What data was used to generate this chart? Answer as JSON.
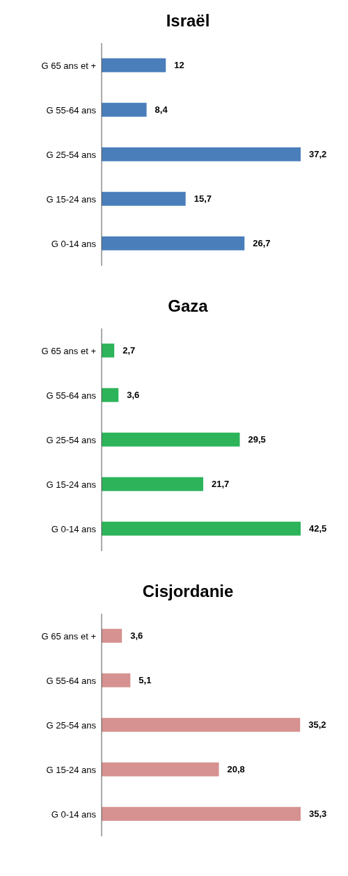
{
  "chart_data": [
    {
      "type": "bar",
      "orientation": "horizontal",
      "title": "Israël",
      "categories": [
        "G 65 ans et +",
        "G 55-64 ans",
        "G 25-54 ans",
        "G 15-24 ans",
        "G 0-14 ans"
      ],
      "values": [
        12,
        8.4,
        37.2,
        15.7,
        26.7
      ],
      "value_labels": [
        "12",
        "8,4",
        "37,2",
        "15,7",
        "26,7"
      ],
      "color": "#4a7ebb",
      "tick_labels": "y"
    },
    {
      "type": "bar",
      "orientation": "horizontal",
      "title": "Gaza",
      "categories": [
        "G 65 ans et +",
        "G 55-64 ans",
        "G 25-54 ans",
        "G 15-24 ans",
        "G 0-14 ans"
      ],
      "values": [
        2.7,
        3.6,
        29.5,
        21.7,
        42.5
      ],
      "value_labels": [
        "2,7",
        "3,6",
        "29,5",
        "21,7",
        "42,5"
      ],
      "color": "#2db45a",
      "tick_labels": "y"
    },
    {
      "type": "bar",
      "orientation": "horizontal",
      "title": "Cisjordanie",
      "categories": [
        "G 65 ans et +",
        "G 55-64 ans",
        "G 25-54 ans",
        "G 15-24 ans",
        "G 0-14 ans"
      ],
      "values": [
        3.6,
        5.1,
        35.2,
        20.8,
        35.3
      ],
      "value_labels": [
        "3,6",
        "5,1",
        "35,2",
        "20,8",
        "35,3"
      ],
      "color": "#d69290",
      "tick_labels": "y"
    }
  ]
}
